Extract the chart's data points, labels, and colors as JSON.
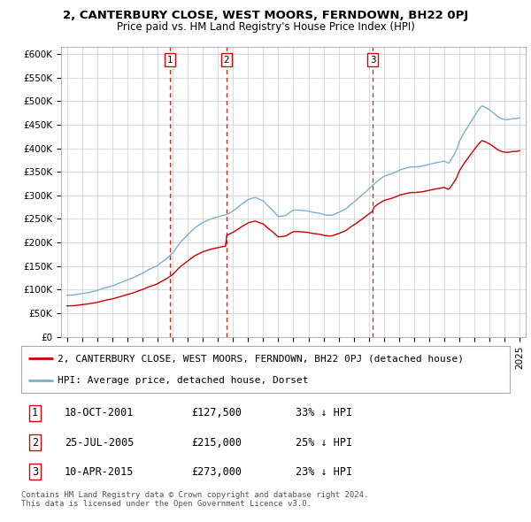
{
  "title": "2, CANTERBURY CLOSE, WEST MOORS, FERNDOWN, BH22 0PJ",
  "subtitle": "Price paid vs. HM Land Registry's House Price Index (HPI)",
  "ylabel_ticks": [
    "£0",
    "£50K",
    "£100K",
    "£150K",
    "£200K",
    "£250K",
    "£300K",
    "£350K",
    "£400K",
    "£450K",
    "£500K",
    "£550K",
    "£600K"
  ],
  "ytick_vals": [
    0,
    50000,
    100000,
    150000,
    200000,
    250000,
    300000,
    350000,
    400000,
    450000,
    500000,
    550000,
    600000
  ],
  "ylim": [
    0,
    615000
  ],
  "xlim_start": 1994.6,
  "xlim_end": 2025.4,
  "sale_dates": [
    2001.8,
    2005.55,
    2015.27
  ],
  "sale_labels": [
    "1",
    "2",
    "3"
  ],
  "sale_prices": [
    127500,
    215000,
    273000
  ],
  "sale_date_strs": [
    "18-OCT-2001",
    "25-JUL-2005",
    "10-APR-2015"
  ],
  "sale_pct": [
    "33% ↓ HPI",
    "25% ↓ HPI",
    "23% ↓ HPI"
  ],
  "legend_property": "2, CANTERBURY CLOSE, WEST MOORS, FERNDOWN, BH22 0PJ (detached house)",
  "legend_hpi": "HPI: Average price, detached house, Dorset",
  "footer": "Contains HM Land Registry data © Crown copyright and database right 2024.\nThis data is licensed under the Open Government Licence v3.0.",
  "red_line_color": "#cc0000",
  "blue_line_color": "#7ab0d4",
  "dashed_color": "#dd0000",
  "background_color": "#ffffff",
  "grid_color": "#cccccc",
  "title_fontsize": 9.5,
  "subtitle_fontsize": 8.5,
  "tick_fontsize": 7.5,
  "legend_fontsize": 8.0,
  "table_fontsize": 8.5,
  "footer_fontsize": 6.5,
  "hpi_years": [
    1995.0,
    1995.083,
    1995.167,
    1995.25,
    1995.333,
    1995.417,
    1995.5,
    1995.583,
    1995.667,
    1995.75,
    1995.833,
    1995.917,
    1996.0,
    1996.083,
    1996.167,
    1996.25,
    1996.333,
    1996.417,
    1996.5,
    1996.583,
    1996.667,
    1996.75,
    1996.833,
    1996.917,
    1997.0,
    1997.083,
    1997.167,
    1997.25,
    1997.333,
    1997.417,
    1997.5,
    1997.583,
    1997.667,
    1997.75,
    1997.833,
    1997.917,
    1998.0,
    1998.083,
    1998.167,
    1998.25,
    1998.333,
    1998.417,
    1998.5,
    1998.583,
    1998.667,
    1998.75,
    1998.833,
    1998.917,
    1999.0,
    1999.083,
    1999.167,
    1999.25,
    1999.333,
    1999.417,
    1999.5,
    1999.583,
    1999.667,
    1999.75,
    1999.833,
    1999.917,
    2000.0,
    2000.083,
    2000.167,
    2000.25,
    2000.333,
    2000.417,
    2000.5,
    2000.583,
    2000.667,
    2000.75,
    2000.833,
    2000.917,
    2001.0,
    2001.083,
    2001.167,
    2001.25,
    2001.333,
    2001.417,
    2001.5,
    2001.583,
    2001.667,
    2001.75,
    2001.833,
    2001.917,
    2002.0,
    2002.083,
    2002.167,
    2002.25,
    2002.333,
    2002.417,
    2002.5,
    2002.583,
    2002.667,
    2002.75,
    2002.833,
    2002.917,
    2003.0,
    2003.083,
    2003.167,
    2003.25,
    2003.333,
    2003.417,
    2003.5,
    2003.583,
    2003.667,
    2003.75,
    2003.833,
    2003.917,
    2004.0,
    2004.083,
    2004.167,
    2004.25,
    2004.333,
    2004.417,
    2004.5,
    2004.583,
    2004.667,
    2004.75,
    2004.833,
    2004.917,
    2005.0,
    2005.083,
    2005.167,
    2005.25,
    2005.333,
    2005.417,
    2005.5,
    2005.583,
    2005.667,
    2005.75,
    2005.833,
    2005.917,
    2006.0,
    2006.083,
    2006.167,
    2006.25,
    2006.333,
    2006.417,
    2006.5,
    2006.583,
    2006.667,
    2006.75,
    2006.833,
    2006.917,
    2007.0,
    2007.083,
    2007.167,
    2007.25,
    2007.333,
    2007.417,
    2007.5,
    2007.583,
    2007.667,
    2007.75,
    2007.833,
    2007.917,
    2008.0,
    2008.083,
    2008.167,
    2008.25,
    2008.333,
    2008.417,
    2008.5,
    2008.583,
    2008.667,
    2008.75,
    2008.833,
    2008.917,
    2009.0,
    2009.083,
    2009.167,
    2009.25,
    2009.333,
    2009.417,
    2009.5,
    2009.583,
    2009.667,
    2009.75,
    2009.833,
    2009.917,
    2010.0,
    2010.083,
    2010.167,
    2010.25,
    2010.333,
    2010.417,
    2010.5,
    2010.583,
    2010.667,
    2010.75,
    2010.833,
    2010.917,
    2011.0,
    2011.083,
    2011.167,
    2011.25,
    2011.333,
    2011.417,
    2011.5,
    2011.583,
    2011.667,
    2011.75,
    2011.833,
    2011.917,
    2012.0,
    2012.083,
    2012.167,
    2012.25,
    2012.333,
    2012.417,
    2012.5,
    2012.583,
    2012.667,
    2012.75,
    2012.833,
    2012.917,
    2013.0,
    2013.083,
    2013.167,
    2013.25,
    2013.333,
    2013.417,
    2013.5,
    2013.583,
    2013.667,
    2013.75,
    2013.833,
    2013.917,
    2014.0,
    2014.083,
    2014.167,
    2014.25,
    2014.333,
    2014.417,
    2014.5,
    2014.583,
    2014.667,
    2014.75,
    2014.833,
    2014.917,
    2015.0,
    2015.083,
    2015.167,
    2015.25,
    2015.333,
    2015.417,
    2015.5,
    2015.583,
    2015.667,
    2015.75,
    2015.833,
    2015.917,
    2016.0,
    2016.083,
    2016.167,
    2016.25,
    2016.333,
    2016.417,
    2016.5,
    2016.583,
    2016.667,
    2016.75,
    2016.833,
    2016.917,
    2017.0,
    2017.083,
    2017.167,
    2017.25,
    2017.333,
    2017.417,
    2017.5,
    2017.583,
    2017.667,
    2017.75,
    2017.833,
    2017.917,
    2018.0,
    2018.083,
    2018.167,
    2018.25,
    2018.333,
    2018.417,
    2018.5,
    2018.583,
    2018.667,
    2018.75,
    2018.833,
    2018.917,
    2019.0,
    2019.083,
    2019.167,
    2019.25,
    2019.333,
    2019.417,
    2019.5,
    2019.583,
    2019.667,
    2019.75,
    2019.833,
    2019.917,
    2020.0,
    2020.083,
    2020.167,
    2020.25,
    2020.333,
    2020.417,
    2020.5,
    2020.583,
    2020.667,
    2020.75,
    2020.833,
    2020.917,
    2021.0,
    2021.083,
    2021.167,
    2021.25,
    2021.333,
    2021.417,
    2021.5,
    2021.583,
    2021.667,
    2021.75,
    2021.833,
    2021.917,
    2022.0,
    2022.083,
    2022.167,
    2022.25,
    2022.333,
    2022.417,
    2022.5,
    2022.583,
    2022.667,
    2022.75,
    2022.833,
    2022.917,
    2023.0,
    2023.083,
    2023.167,
    2023.25,
    2023.333,
    2023.417,
    2023.5,
    2023.583,
    2023.667,
    2023.75,
    2023.833,
    2023.917,
    2024.0,
    2024.083,
    2024.167,
    2024.25,
    2024.333,
    2024.417,
    2024.5,
    2024.583,
    2024.667,
    2024.75,
    2024.833,
    2024.917,
    2025.0
  ]
}
